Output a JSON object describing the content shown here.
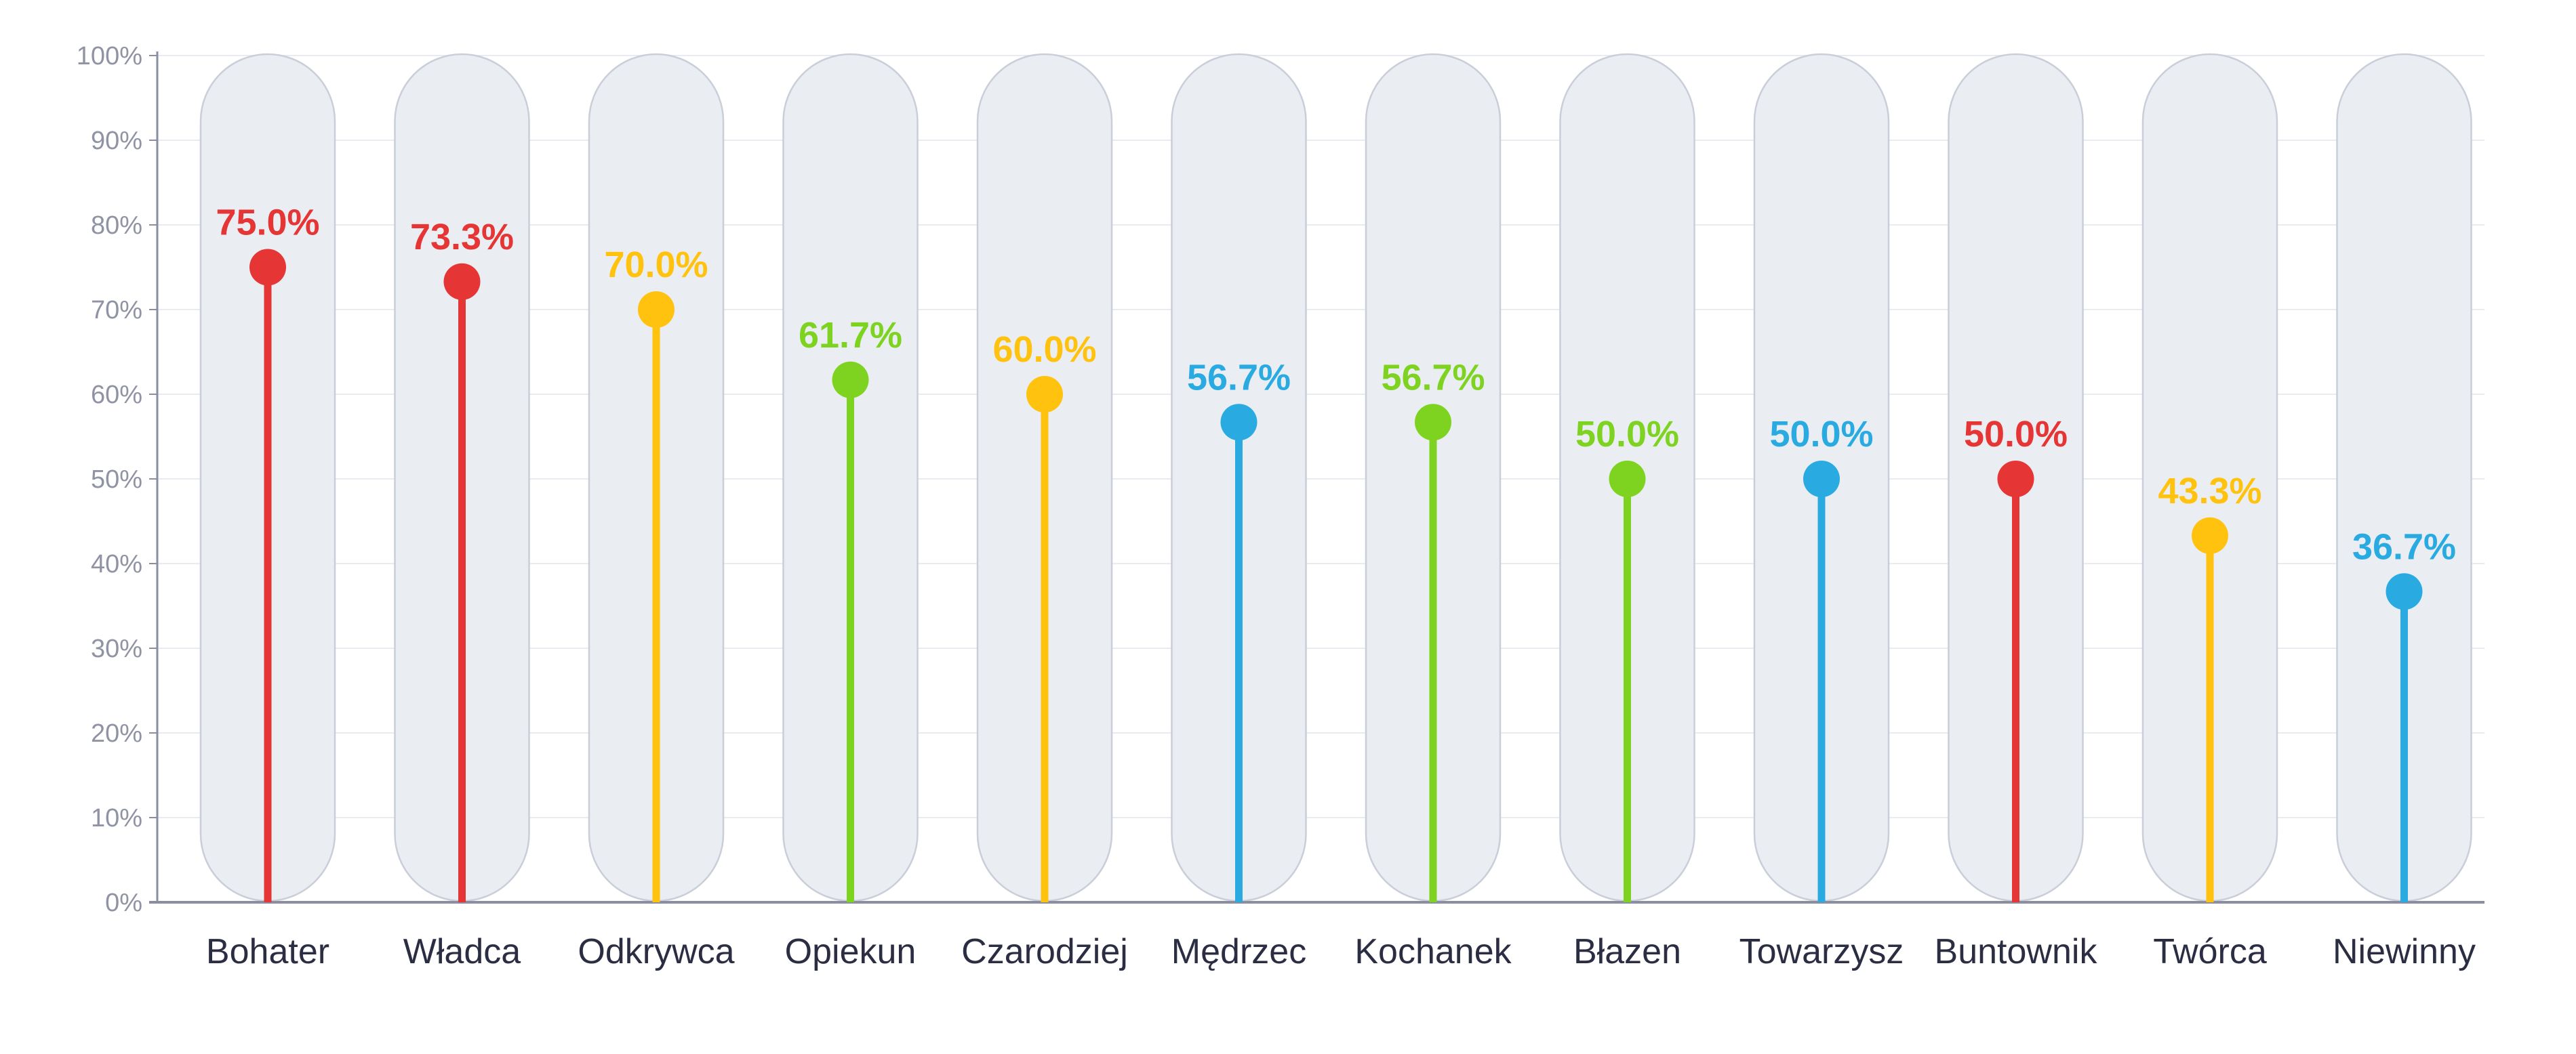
{
  "chart_data": {
    "type": "lollipop",
    "categories": [
      "Bohater",
      "Władca",
      "Odkrywca",
      "Opiekun",
      "Czarodziej",
      "Mędrzec",
      "Kochanek",
      "Błazen",
      "Towarzysz",
      "Buntownik",
      "Twórca",
      "Niewinny"
    ],
    "values": [
      75.0,
      73.3,
      70.0,
      61.7,
      60.0,
      56.7,
      56.7,
      50.0,
      50.0,
      50.0,
      43.3,
      36.7
    ],
    "value_labels": [
      "75.0%",
      "73.3%",
      "70.0%",
      "61.7%",
      "60.0%",
      "56.7%",
      "56.7%",
      "50.0%",
      "50.0%",
      "50.0%",
      "43.3%",
      "36.7%"
    ],
    "colors": [
      "#e53535",
      "#e53535",
      "#ffc20e",
      "#7ed321",
      "#ffc20e",
      "#29abe2",
      "#7ed321",
      "#7ed321",
      "#29abe2",
      "#e53535",
      "#ffc20e",
      "#29abe2"
    ],
    "y_ticks": [
      "0%",
      "10%",
      "20%",
      "30%",
      "40%",
      "50%",
      "60%",
      "70%",
      "80%",
      "90%",
      "100%"
    ],
    "ylim": [
      0,
      100
    ],
    "grid": true,
    "legend": "none",
    "background_pill_color": "#eaedf2",
    "axis_color": "#8a8ea0"
  }
}
